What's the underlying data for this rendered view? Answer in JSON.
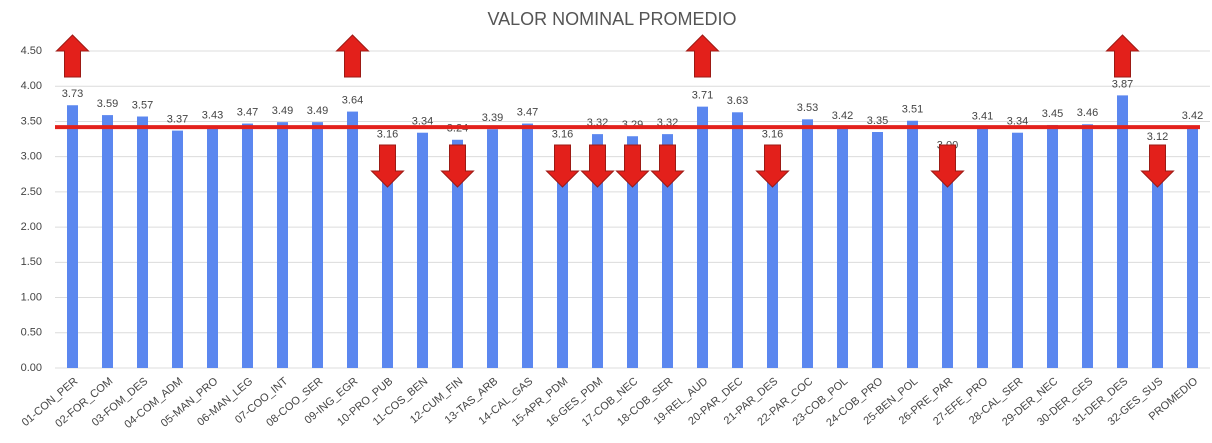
{
  "chart_data": {
    "type": "bar",
    "title": "VALOR NOMINAL PROMEDIO",
    "categories": [
      "01-CON_PER",
      "02-FOR_COM",
      "03-FOM_DES",
      "04-COM_ADM",
      "05-MAN_PRO",
      "06-MAN_LEG",
      "07-COO_INT",
      "08-COO_SER",
      "09-ING_EGR",
      "10-PRO_PUB",
      "11-COS_BEN",
      "12-CUM_FIN",
      "13-TAS_ARB",
      "14-CAL_GAS",
      "15-APR_PDM",
      "16-GES_PDM",
      "17-COB_NEC",
      "18-COB_SER",
      "19-REL_AUD",
      "20-PAR_DEC",
      "21-PAR_DES",
      "22-PAR_COC",
      "23-COB_POL",
      "24-COB_PRO",
      "25-BEN_POL",
      "26-PRE_PAR",
      "27-EFE_PRO",
      "28-CAL_SER",
      "29-DER_NEC",
      "30-DER_GES",
      "31-DER_DES",
      "32-GES_SUS",
      "PROMEDIO"
    ],
    "values": [
      3.73,
      3.59,
      3.57,
      3.37,
      3.43,
      3.47,
      3.49,
      3.49,
      3.64,
      3.16,
      3.34,
      3.24,
      3.39,
      3.47,
      3.16,
      3.32,
      3.29,
      3.32,
      3.71,
      3.63,
      3.16,
      3.53,
      3.42,
      3.35,
      3.51,
      3.0,
      3.41,
      3.34,
      3.45,
      3.46,
      3.87,
      3.12,
      3.42
    ],
    "value_labels": [
      "3.73",
      "3.59",
      "3.57",
      "3.37",
      "3.43",
      "3.47",
      "3.49",
      "3.49",
      "3.64",
      "3.16",
      "3.34",
      "3.24",
      "3.39",
      "3.47",
      "3.16",
      "3.32",
      "3.29",
      "3.32",
      "3.71",
      "3.63",
      "3.16",
      "3.53",
      "3.42",
      "3.35",
      "3.51",
      "3.00",
      "3.41",
      "3.34",
      "3.45",
      "3.46",
      "3.87",
      "3.12",
      "3.42"
    ],
    "color": "#5b87ef",
    "ylim": [
      0,
      4.5
    ],
    "yticks": [
      {
        "value": 0,
        "label": "0.00"
      },
      {
        "value": 0.5,
        "label": "0.50"
      },
      {
        "value": 1,
        "label": "1.00"
      },
      {
        "value": 1.5,
        "label": "1.50"
      },
      {
        "value": 2,
        "label": "2.00"
      },
      {
        "value": 2.5,
        "label": "2.50"
      },
      {
        "value": 3,
        "label": "3.00"
      },
      {
        "value": 3.5,
        "label": "3.50"
      },
      {
        "value": 4,
        "label": "4.00"
      },
      {
        "value": 4.5,
        "label": "4.50"
      }
    ],
    "grid": true,
    "reference_line": {
      "value": 3.42,
      "color": "#e3201b"
    },
    "up_arrows": [
      0,
      8,
      18,
      30
    ],
    "down_arrows": [
      9,
      11,
      14,
      15,
      16,
      17,
      20,
      25,
      31
    ],
    "arrow_color": "#e3201b"
  }
}
